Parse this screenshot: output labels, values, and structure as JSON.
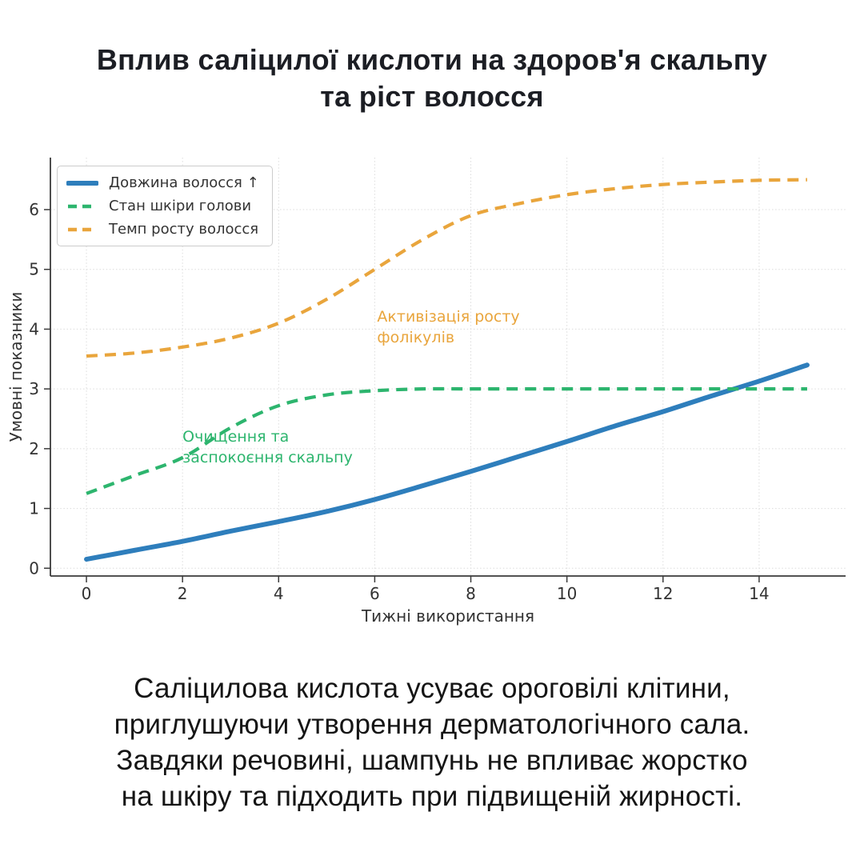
{
  "title": {
    "line1": "Вплив саліцилої кислоти на здоров'я скальпу",
    "line2": "та ріст волосся"
  },
  "paragraph": {
    "text": "Саліцилова кислота усуває ороговілі клітини,\nприглушуючи утворення дерматологічного сала.\nЗавдяки речовині, шампунь не впливає жорстко\nна шкіру та підходить при підвищеній жирності."
  },
  "chart_data": {
    "type": "line",
    "title": "",
    "xlabel": "Тижні використання",
    "ylabel": "Умовні показники",
    "x": [
      0,
      1,
      2,
      3,
      4,
      5,
      6,
      7,
      8,
      9,
      10,
      11,
      12,
      13,
      14,
      15
    ],
    "series": [
      {
        "name": "Довжина волосся ↑",
        "color": "#2e7ebc",
        "style": "solid",
        "width": 6,
        "values": [
          0.15,
          0.3,
          0.45,
          0.62,
          0.78,
          0.95,
          1.15,
          1.38,
          1.62,
          1.87,
          2.12,
          2.38,
          2.62,
          2.88,
          3.13,
          3.4
        ]
      },
      {
        "name": "Стан шкіри голови",
        "color": "#2db56e",
        "style": "dashed",
        "width": 4.2,
        "values": [
          1.25,
          1.55,
          1.85,
          2.35,
          2.72,
          2.9,
          2.97,
          3.0,
          3.0,
          3.0,
          3.0,
          3.0,
          3.0,
          3.0,
          3.0,
          3.0
        ]
      },
      {
        "name": "Темп росту волосся",
        "color": "#e9a53c",
        "style": "dashed",
        "width": 4.2,
        "values": [
          3.55,
          3.6,
          3.7,
          3.85,
          4.1,
          4.5,
          5.0,
          5.5,
          5.9,
          6.1,
          6.25,
          6.35,
          6.42,
          6.46,
          6.49,
          6.5
        ]
      }
    ],
    "xticks": [
      0,
      2,
      4,
      6,
      8,
      10,
      12,
      14
    ],
    "yticks": [
      0,
      1,
      2,
      3,
      4,
      5,
      6
    ],
    "xlim": [
      -0.75,
      15.8
    ],
    "ylim": [
      -0.13,
      6.87
    ],
    "grid": true,
    "legend_position": "upper-left",
    "annotations": [
      {
        "text": "Активізація росту\nфолікулів",
        "color": "#e9a53c",
        "x": 6.05,
        "y": 4.38
      },
      {
        "text": "Очищення та\nзаспокоєння скальпу",
        "color": "#2db56e",
        "x": 2.0,
        "y": 2.37
      }
    ],
    "colors": {
      "grid": "#dcdcdc",
      "spine": "#3a3a3a",
      "tick_label": "#333333"
    }
  }
}
